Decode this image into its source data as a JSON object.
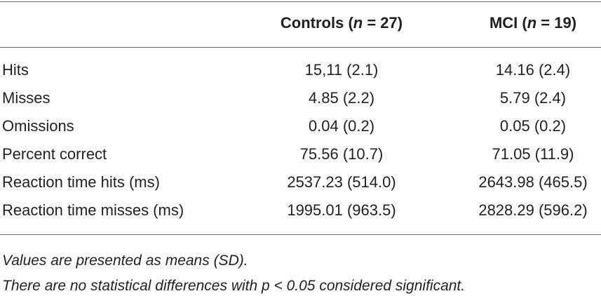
{
  "table": {
    "columns": [
      {
        "prefix": "Controls (",
        "variable": "n",
        "suffix": " = 27)"
      },
      {
        "prefix": "MCI (",
        "variable": "n",
        "suffix": " = 19)"
      }
    ],
    "rows": [
      [
        "Hits",
        "15,11 (2.1)",
        "14.16 (2.4)"
      ],
      [
        "Misses",
        "4.85 (2.2)",
        "5.79 (2.4)"
      ],
      [
        "Omissions",
        "0.04 (0.2)",
        "0.05 (0.2)"
      ],
      [
        "Percent correct",
        "75.56 (10.7)",
        "71.05 (11.9)"
      ],
      [
        "Reaction time hits (ms)",
        "2537.23 (514.0)",
        "2643.98 (465.5)"
      ],
      [
        "Reaction time misses (ms)",
        "1995.01 (963.5)",
        "2828.29 (596.2)"
      ]
    ],
    "footnotes": [
      "Values are presented as means (SD).",
      "There are no statistical differences with p < 0.05 considered significant."
    ]
  }
}
